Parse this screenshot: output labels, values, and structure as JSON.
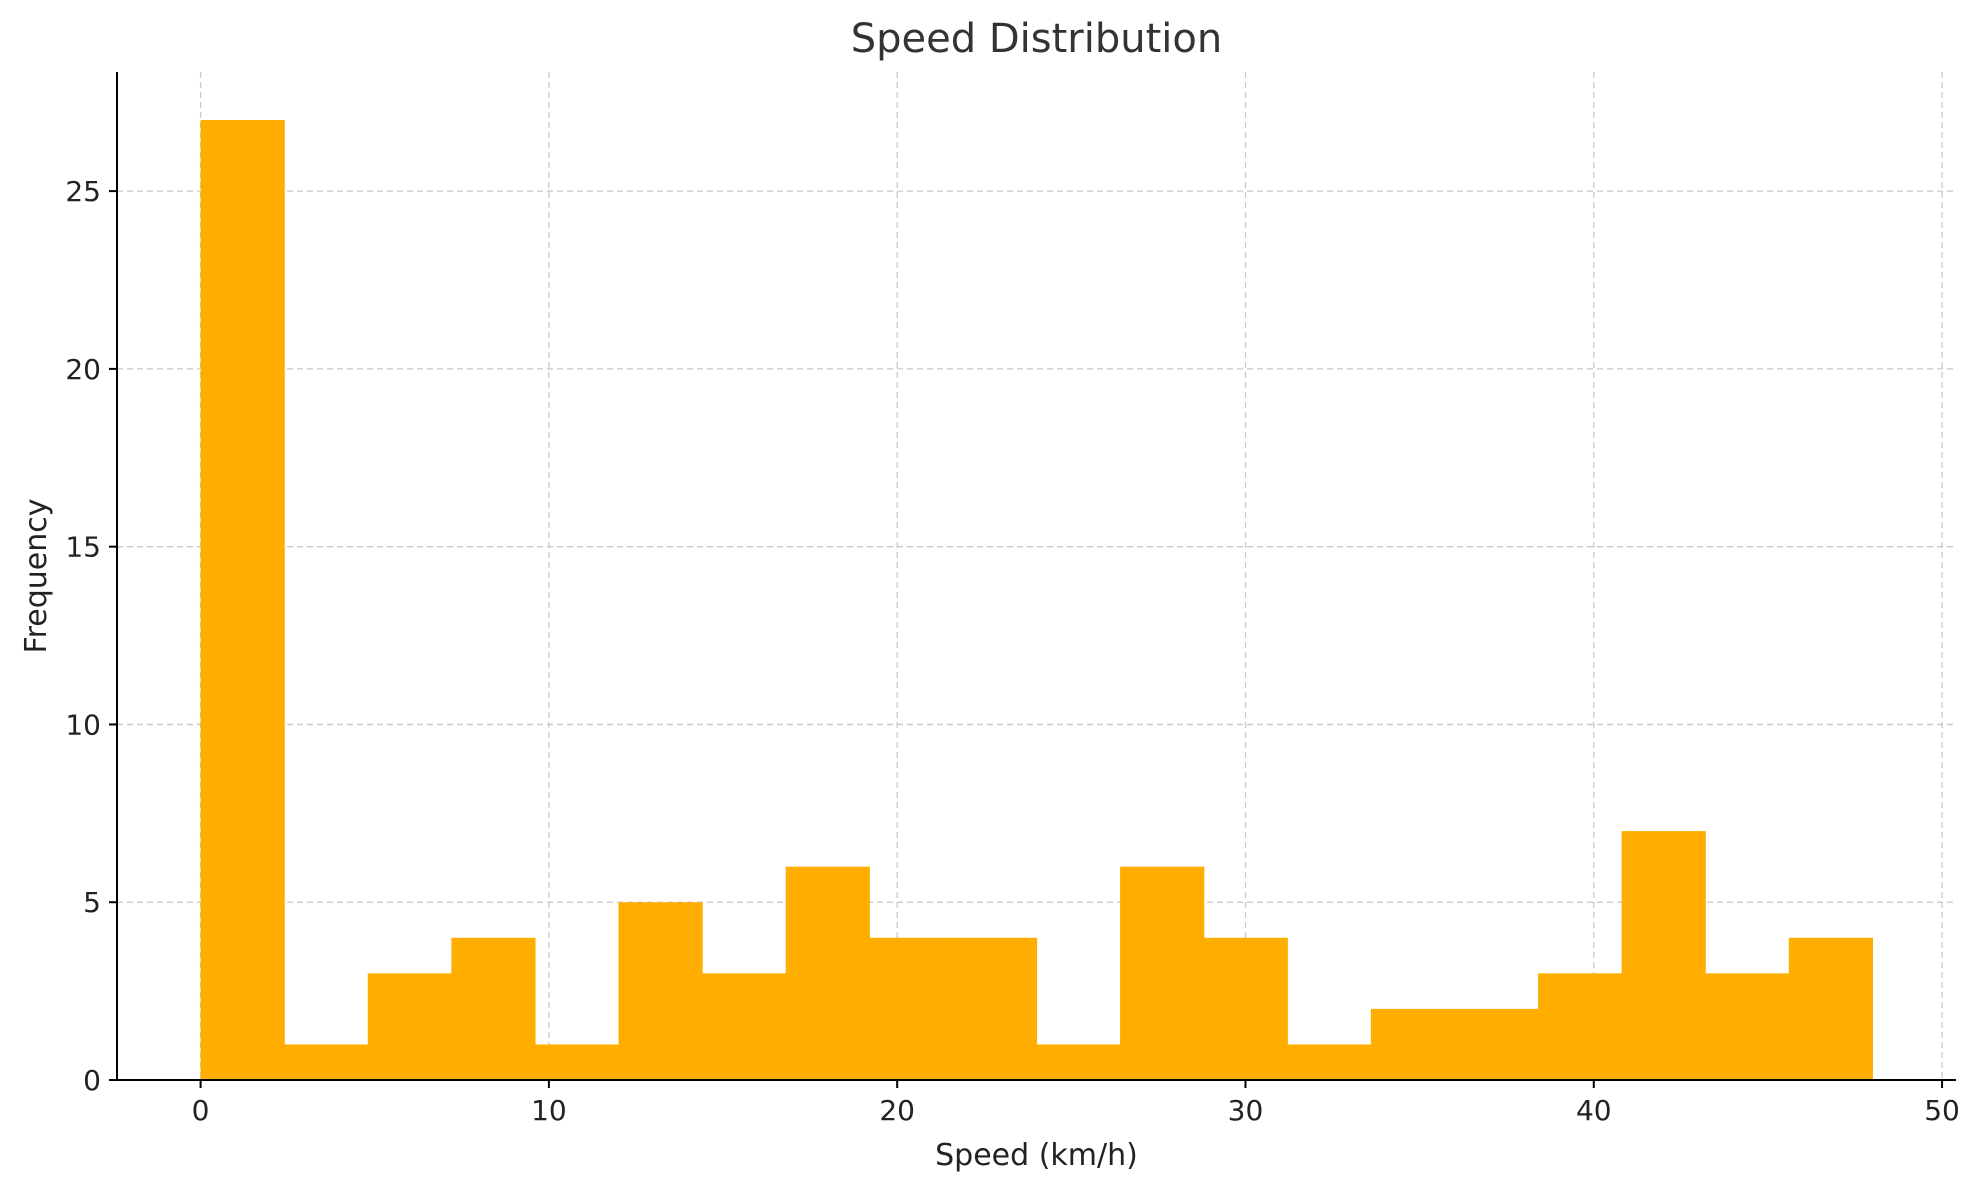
{
  "chart_data": {
    "type": "bar",
    "title": "Speed Distribution",
    "xlabel": "Speed (km/h)",
    "ylabel": "Frequency",
    "bin_edges": [
      0,
      2.4,
      4.8,
      7.2,
      9.6,
      12.0,
      14.4,
      16.8,
      19.2,
      21.6,
      24.0,
      26.4,
      28.8,
      31.2,
      33.6,
      36.0,
      38.4,
      40.8,
      43.2,
      45.6,
      48.0
    ],
    "values": [
      27,
      1,
      3,
      4,
      1,
      5,
      3,
      6,
      4,
      4,
      1,
      6,
      4,
      1,
      2,
      2,
      3,
      7,
      3,
      4
    ],
    "xlim": [
      -2.4,
      50.4
    ],
    "ylim": [
      0,
      28.35
    ],
    "xticks": [
      0,
      10,
      20,
      30,
      40,
      50
    ],
    "yticks": [
      0,
      5,
      10,
      15,
      20,
      25
    ],
    "grid": true,
    "bar_color": "#ffae00"
  }
}
